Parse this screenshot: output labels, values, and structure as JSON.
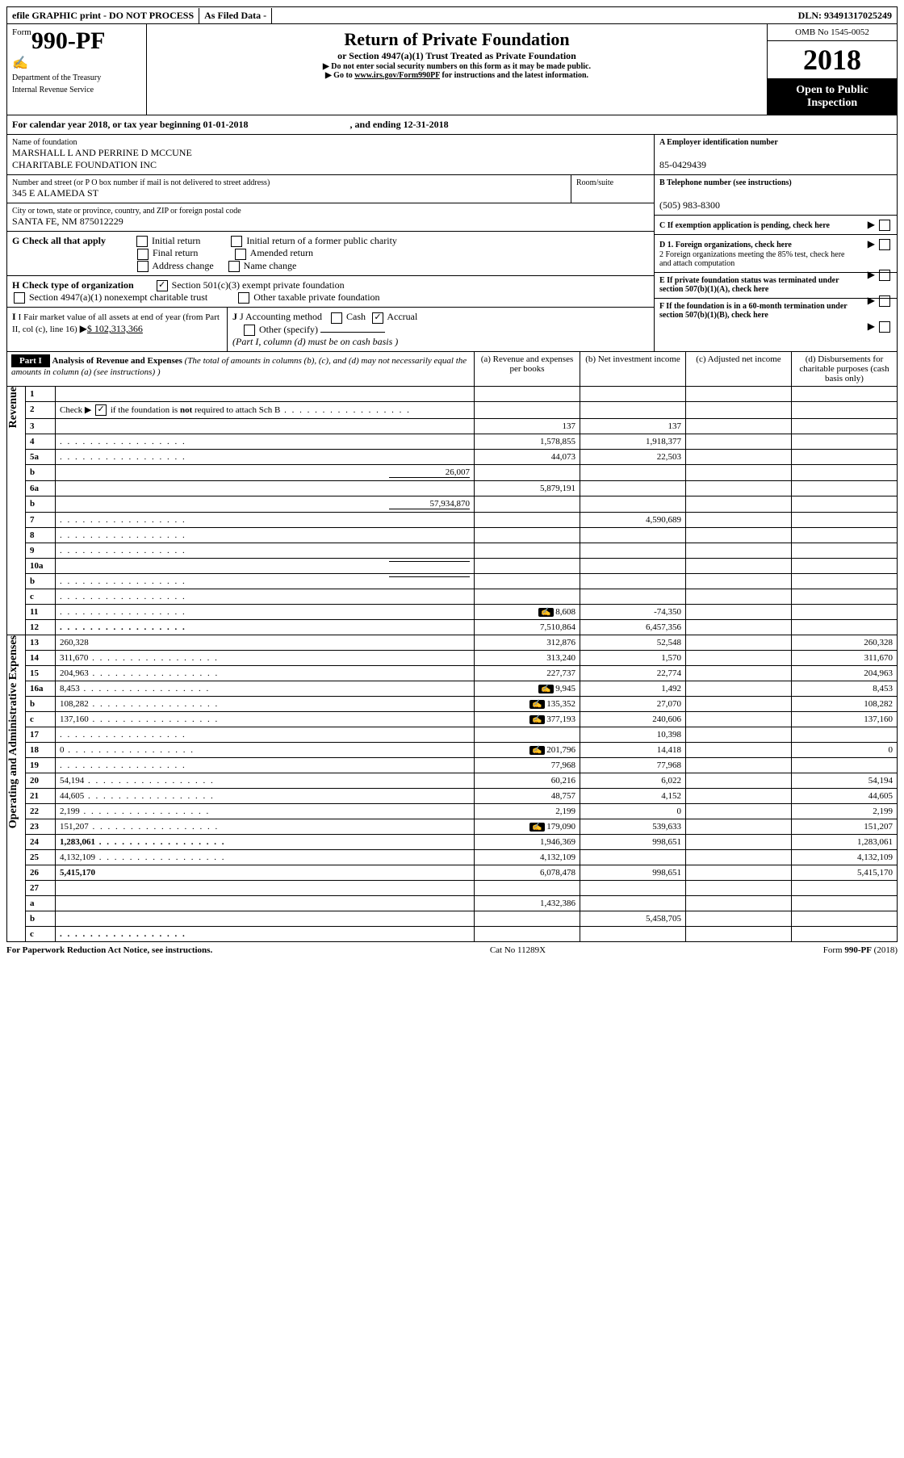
{
  "top": {
    "efile": "efile GRAPHIC print - DO NOT PROCESS",
    "asfiled": "As Filed Data -",
    "dln_label": "DLN:",
    "dln": "93491317025249"
  },
  "header": {
    "form_prefix": "Form",
    "form_no": "990-PF",
    "dept": "Department of the Treasury",
    "irs": "Internal Revenue Service",
    "title": "Return of Private Foundation",
    "subtitle": "or Section 4947(a)(1) Trust Treated as Private Foundation",
    "note1": "Do not enter social security numbers on this form as it may be made public.",
    "note2": "Go to www.irs.gov/Form990PF for instructions and the latest information.",
    "note2_link": "www.irs.gov/Form990PF",
    "omb": "OMB No 1545-0052",
    "year": "2018",
    "open": "Open to Public Inspection"
  },
  "calendar": {
    "line": "For calendar year 2018, or tax year beginning 01-01-2018",
    "ending": ", and ending 12-31-2018"
  },
  "info": {
    "name_label": "Name of foundation",
    "name1": "MARSHALL L AND PERRINE D MCCUNE",
    "name2": "CHARITABLE FOUNDATION INC",
    "addr_label": "Number and street (or P O  box number if mail is not delivered to street address)",
    "room_label": "Room/suite",
    "addr": "345 E ALAMEDA ST",
    "city_label": "City or town, state or province, country, and ZIP or foreign postal code",
    "city": "SANTA FE, NM  875012229",
    "a_label": "A Employer identification number",
    "a_val": "85-0429439",
    "b_label": "B Telephone number (see instructions)",
    "b_val": "(505) 983-8300",
    "c_label": "C If exemption application is pending, check here",
    "g_label": "G Check all that apply",
    "g_opts": [
      "Initial return",
      "Initial return of a former public charity",
      "Final return",
      "Amended return",
      "Address change",
      "Name change"
    ],
    "h_label": "H Check type of organization",
    "h_opt1": "Section 501(c)(3) exempt private foundation",
    "h_opt2": "Section 4947(a)(1) nonexempt charitable trust",
    "h_opt3": "Other taxable private foundation",
    "d1": "D 1. Foreign organizations, check here",
    "d2": "2 Foreign organizations meeting the 85% test, check here and attach computation",
    "e_label": "E  If private foundation status was terminated under section 507(b)(1)(A), check here",
    "f_label": "F  If the foundation is in a 60-month termination under section 507(b)(1)(B), check here",
    "i_label": "I Fair market value of all assets at end of year (from Part II, col  (c), line 16)",
    "i_val": "$  102,313,366",
    "j_label": "J Accounting method",
    "j_cash": "Cash",
    "j_accrual": "Accrual",
    "j_other": "Other (specify)",
    "j_note": "(Part I, column (d) must be on cash basis )"
  },
  "part1": {
    "label": "Part I",
    "title": "Analysis of Revenue and Expenses",
    "title_note": "(The total of amounts in columns (b), (c), and (d) may not necessarily equal the amounts in column (a) (see instructions) )",
    "col_a": "(a)   Revenue and expenses per books",
    "col_b": "(b)  Net investment income",
    "col_c": "(c)  Adjusted net income",
    "col_d": "(d)  Disbursements for charitable purposes (cash basis only)"
  },
  "revenue_label": "Revenue",
  "expenses_label": "Operating and Administrative Expenses",
  "rows": [
    {
      "n": "1",
      "d": "",
      "a": "",
      "b": "",
      "c": ""
    },
    {
      "n": "2",
      "d": "",
      "a": "",
      "b": "",
      "c": "",
      "dots": true,
      "spec": "check"
    },
    {
      "n": "3",
      "d": "",
      "a": "137",
      "b": "137",
      "c": ""
    },
    {
      "n": "4",
      "d": "",
      "a": "1,578,855",
      "b": "1,918,377",
      "c": "",
      "dots": true
    },
    {
      "n": "5a",
      "d": "",
      "a": "44,073",
      "b": "22,503",
      "c": "",
      "dots": true
    },
    {
      "n": "b",
      "d": "",
      "trail": "26,007",
      "a": "",
      "b": "",
      "c": ""
    },
    {
      "n": "6a",
      "d": "",
      "a": "5,879,191",
      "b": "",
      "c": ""
    },
    {
      "n": "b",
      "d": "",
      "trail": "57,934,870",
      "a": "",
      "b": "",
      "c": ""
    },
    {
      "n": "7",
      "d": "",
      "a": "",
      "b": "4,590,689",
      "c": "",
      "dots": true
    },
    {
      "n": "8",
      "d": "",
      "a": "",
      "b": "",
      "c": "",
      "dots": true
    },
    {
      "n": "9",
      "d": "",
      "a": "",
      "b": "",
      "c": "",
      "dots": true
    },
    {
      "n": "10a",
      "d": "",
      "trail": "",
      "a": "",
      "b": "",
      "c": ""
    },
    {
      "n": "b",
      "d": "",
      "trail": "",
      "a": "",
      "b": "",
      "c": "",
      "dots": true
    },
    {
      "n": "c",
      "d": "",
      "a": "",
      "b": "",
      "c": "",
      "dots": true
    },
    {
      "n": "11",
      "d": "",
      "a": "8,608",
      "b": "-74,350",
      "c": "",
      "dots": true,
      "icon": true
    },
    {
      "n": "12",
      "d": "",
      "a": "7,510,864",
      "b": "6,457,356",
      "c": "",
      "dots": true,
      "bold": true
    }
  ],
  "exp_rows": [
    {
      "n": "13",
      "d": "260,328",
      "a": "312,876",
      "b": "52,548",
      "c": ""
    },
    {
      "n": "14",
      "d": "311,670",
      "a": "313,240",
      "b": "1,570",
      "c": "",
      "dots": true
    },
    {
      "n": "15",
      "d": "204,963",
      "a": "227,737",
      "b": "22,774",
      "c": "",
      "dots": true
    },
    {
      "n": "16a",
      "d": "8,453",
      "a": "9,945",
      "b": "1,492",
      "c": "",
      "dots": true,
      "icon": true
    },
    {
      "n": "b",
      "d": "108,282",
      "a": "135,352",
      "b": "27,070",
      "c": "",
      "dots": true,
      "icon": true
    },
    {
      "n": "c",
      "d": "137,160",
      "a": "377,193",
      "b": "240,606",
      "c": "",
      "dots": true,
      "icon": true
    },
    {
      "n": "17",
      "d": "",
      "a": "",
      "b": "10,398",
      "c": "",
      "dots": true
    },
    {
      "n": "18",
      "d": "0",
      "a": "201,796",
      "b": "14,418",
      "c": "",
      "dots": true,
      "icon": true
    },
    {
      "n": "19",
      "d": "",
      "a": "77,968",
      "b": "77,968",
      "c": "",
      "dots": true
    },
    {
      "n": "20",
      "d": "54,194",
      "a": "60,216",
      "b": "6,022",
      "c": "",
      "dots": true
    },
    {
      "n": "21",
      "d": "44,605",
      "a": "48,757",
      "b": "4,152",
      "c": "",
      "dots": true
    },
    {
      "n": "22",
      "d": "2,199",
      "a": "2,199",
      "b": "0",
      "c": "",
      "dots": true
    },
    {
      "n": "23",
      "d": "151,207",
      "a": "179,090",
      "b": "539,633",
      "c": "",
      "dots": true,
      "icon": true
    },
    {
      "n": "24",
      "d": "1,283,061",
      "a": "1,946,369",
      "b": "998,651",
      "c": "",
      "dots": true,
      "bold": true
    },
    {
      "n": "25",
      "d": "4,132,109",
      "a": "4,132,109",
      "b": "",
      "c": "",
      "dots": true
    },
    {
      "n": "26",
      "d": "5,415,170",
      "a": "6,078,478",
      "b": "998,651",
      "c": "",
      "bold": true
    },
    {
      "n": "27",
      "d": "",
      "a": "",
      "b": "",
      "c": ""
    },
    {
      "n": "a",
      "d": "",
      "a": "1,432,386",
      "b": "",
      "c": "",
      "bold": true
    },
    {
      "n": "b",
      "d": "",
      "a": "",
      "b": "5,458,705",
      "c": "",
      "bold": true
    },
    {
      "n": "c",
      "d": "",
      "a": "",
      "b": "",
      "c": "",
      "bold": true,
      "dots": true
    }
  ],
  "footer": {
    "left": "For Paperwork Reduction Act Notice, see instructions.",
    "mid": "Cat  No  11289X",
    "right": "Form 990-PF (2018)"
  }
}
